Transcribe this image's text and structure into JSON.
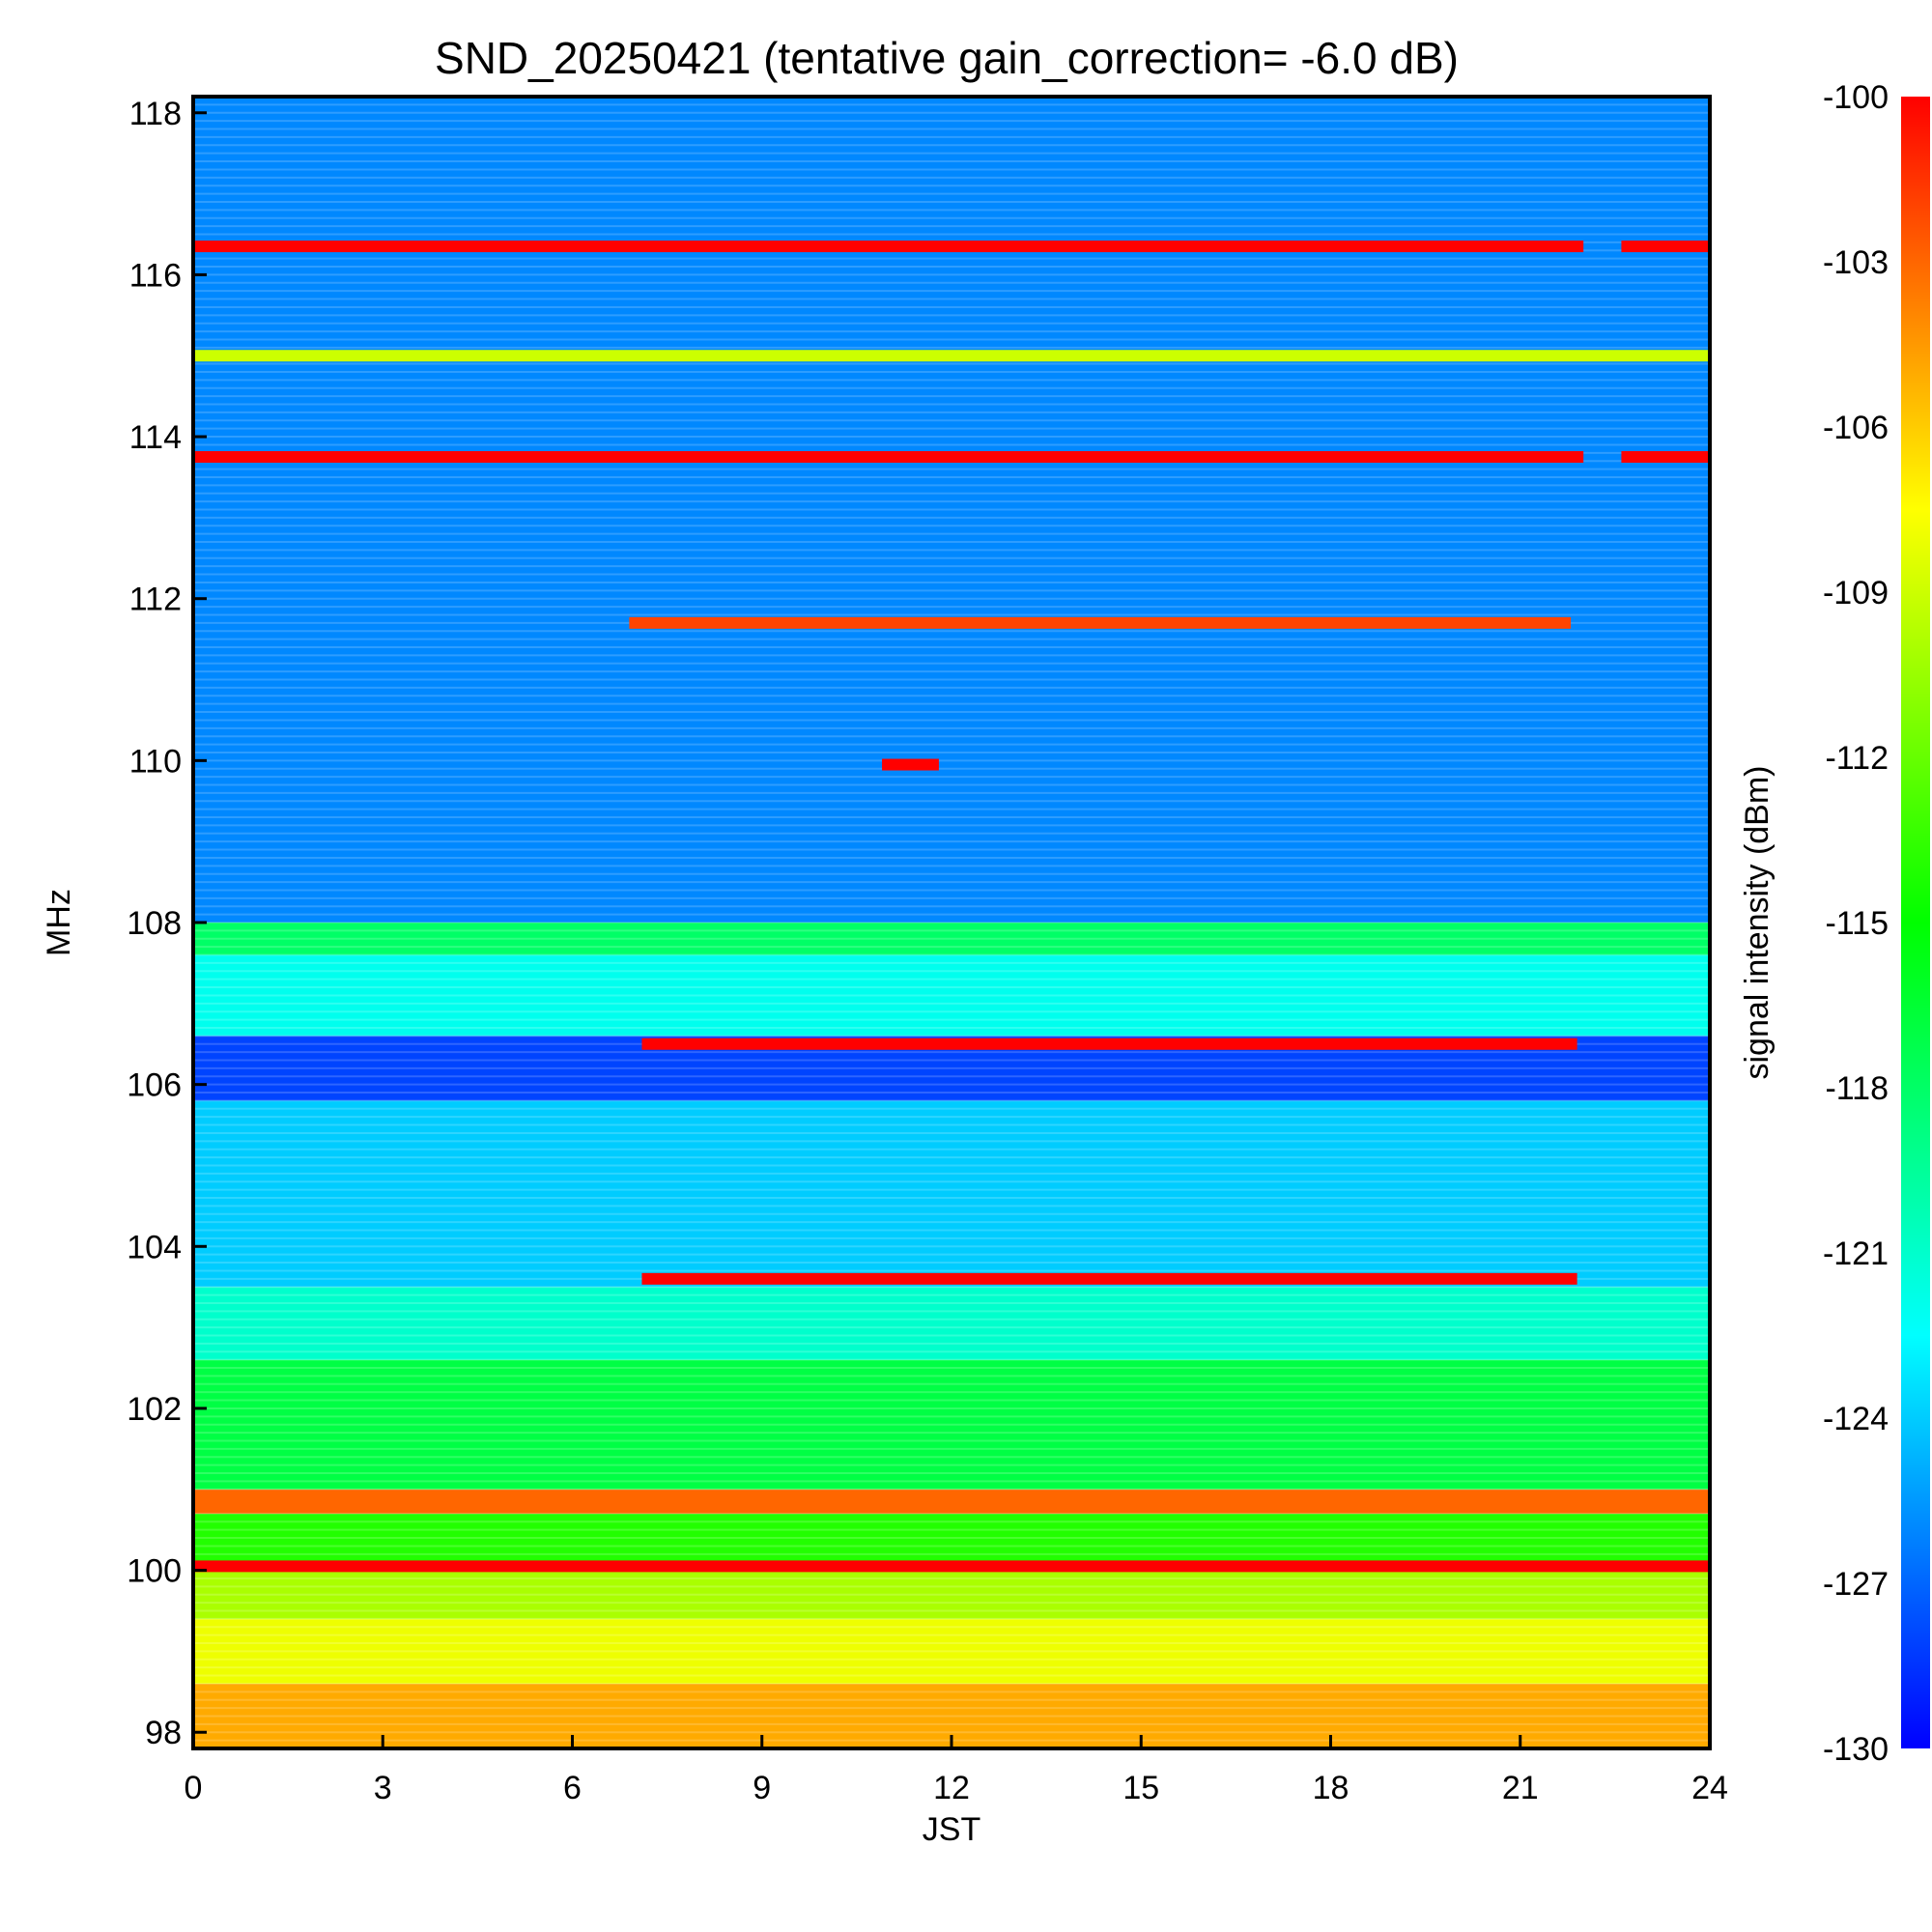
{
  "chart_data": {
    "type": "heatmap",
    "title": "SND_20250421 (tentative gain_correction= -6.0 dB)",
    "xlabel": "JST",
    "ylabel": "MHz",
    "colorbar_label": "signal intensity (dBm)",
    "xlim": [
      0,
      24
    ],
    "ylim": [
      97.8,
      118.2
    ],
    "x_ticks": [
      0,
      3,
      6,
      9,
      12,
      15,
      18,
      21,
      24
    ],
    "y_ticks": [
      98,
      100,
      102,
      104,
      106,
      108,
      110,
      112,
      114,
      116,
      118
    ],
    "color_range": [
      -130,
      -100
    ],
    "colorbar_ticks": [
      -100,
      -103,
      -106,
      -109,
      -112,
      -115,
      -118,
      -121,
      -124,
      -127,
      -130
    ],
    "colormap": [
      "#0000ff",
      "#00ffff",
      "#00ff00",
      "#ffff00",
      "#ff0000"
    ],
    "band_levels_dBm": [
      {
        "from_mhz": 97.8,
        "to_mhz": 98.6,
        "level": -105
      },
      {
        "from_mhz": 98.6,
        "to_mhz": 99.4,
        "level": -108
      },
      {
        "from_mhz": 99.4,
        "to_mhz": 100.0,
        "level": -110
      },
      {
        "from_mhz": 100.0,
        "to_mhz": 100.7,
        "level": -114
      },
      {
        "from_mhz": 100.7,
        "to_mhz": 101.0,
        "level": -103
      },
      {
        "from_mhz": 101.0,
        "to_mhz": 102.6,
        "level": -117
      },
      {
        "from_mhz": 102.6,
        "to_mhz": 103.5,
        "level": -121
      },
      {
        "from_mhz": 103.5,
        "to_mhz": 105.8,
        "level": -124
      },
      {
        "from_mhz": 105.8,
        "to_mhz": 106.6,
        "level": -128
      },
      {
        "from_mhz": 106.6,
        "to_mhz": 107.6,
        "level": -122
      },
      {
        "from_mhz": 107.6,
        "to_mhz": 108.0,
        "level": -118
      },
      {
        "from_mhz": 108.0,
        "to_mhz": 118.2,
        "level": -126
      }
    ],
    "strong_signals": [
      {
        "freq_mhz": 116.35,
        "start": 0,
        "end": 22.0,
        "level": -100
      },
      {
        "freq_mhz": 116.35,
        "start": 22.6,
        "end": 24,
        "level": -100
      },
      {
        "freq_mhz": 115.0,
        "start": 0,
        "end": 24,
        "level": -109
      },
      {
        "freq_mhz": 113.75,
        "start": 0,
        "end": 22.0,
        "level": -100
      },
      {
        "freq_mhz": 113.75,
        "start": 22.6,
        "end": 24,
        "level": -100
      },
      {
        "freq_mhz": 111.7,
        "start": 6.9,
        "end": 21.8,
        "level": -102
      },
      {
        "freq_mhz": 109.95,
        "start": 10.9,
        "end": 11.8,
        "level": -100
      },
      {
        "freq_mhz": 106.5,
        "start": 7.1,
        "end": 21.9,
        "level": -100
      },
      {
        "freq_mhz": 103.6,
        "start": 7.1,
        "end": 21.9,
        "level": -100
      },
      {
        "freq_mhz": 100.85,
        "start": 0,
        "end": 24,
        "level": -103
      },
      {
        "freq_mhz": 100.05,
        "start": 0,
        "end": 24,
        "level": -100
      }
    ]
  }
}
